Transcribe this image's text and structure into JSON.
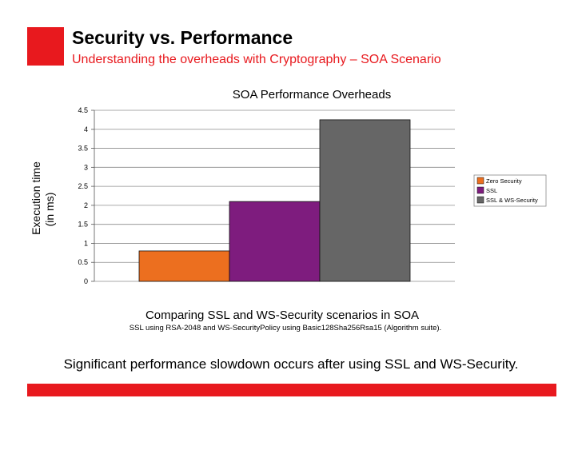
{
  "slide": {
    "title": "Security vs. Performance",
    "subtitle": "Understanding the overheads with Cryptography – SOA Scenario",
    "note": "Significant performance slowdown occurs after using SSL and WS-Security.",
    "accent_color": "#e8191e"
  },
  "chart_data": {
    "type": "bar",
    "title": "SOA Performance Overheads",
    "xlabel": "Comparing SSL and WS-Security scenarios in SOA",
    "caption": "SSL using RSA-2048 and WS-SecurityPolicy using Basic128Sha256Rsa15 (Algorithm suite).",
    "ylabel_line1": "Execution time",
    "ylabel_line2": "(in ms)",
    "ylim": [
      0,
      4.5
    ],
    "yticks": [
      "0",
      "0.5",
      "1",
      "1.5",
      "2",
      "2.5",
      "3",
      "3.5",
      "4",
      "4.5"
    ],
    "grid": true,
    "legend_position": "right",
    "series": [
      {
        "name": "Zero Security",
        "value": 0.8,
        "color": "#ec6f1f"
      },
      {
        "name": "SSL",
        "value": 2.1,
        "color": "#7e1c7e"
      },
      {
        "name": "SSL & WS-Security",
        "value": 4.25,
        "color": "#666666"
      }
    ]
  }
}
